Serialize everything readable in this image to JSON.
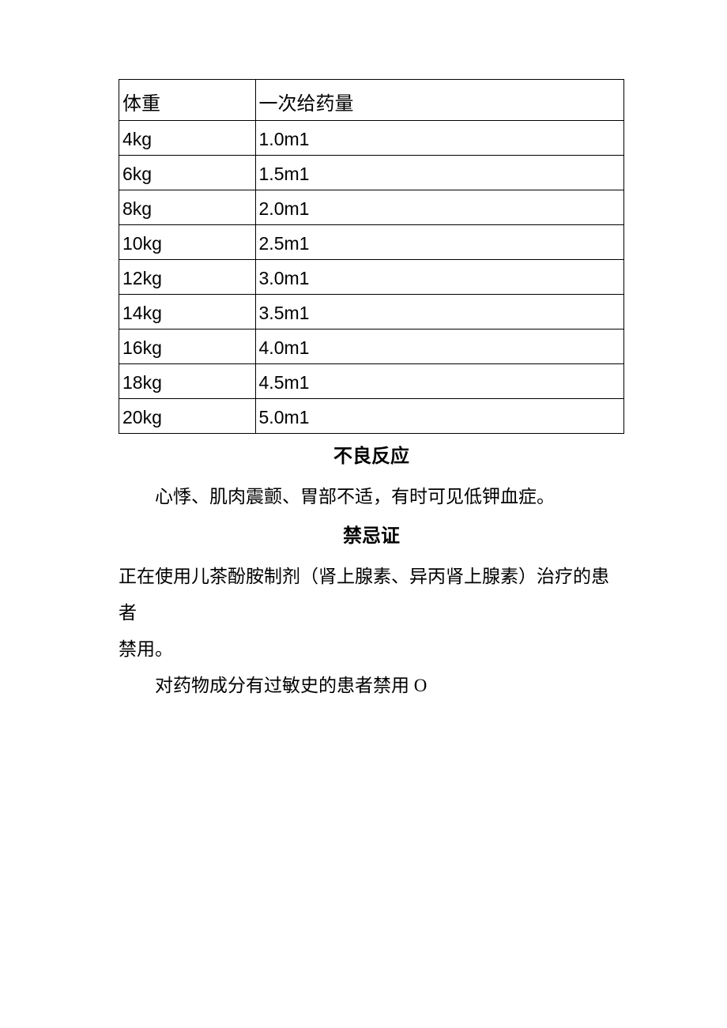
{
  "table": {
    "header": {
      "weight": "体重",
      "dose": "一次给药量"
    },
    "rows": [
      {
        "weight": "4kg",
        "dose": "1.0m1"
      },
      {
        "weight": "6kg",
        "dose": "1.5m1"
      },
      {
        "weight": "8kg",
        "dose": "2.0m1"
      },
      {
        "weight": "10kg",
        "dose": "2.5m1"
      },
      {
        "weight": "12kg",
        "dose": "3.0m1"
      },
      {
        "weight": "14kg",
        "dose": "3.5m1"
      },
      {
        "weight": "16kg",
        "dose": "4.0m1"
      },
      {
        "weight": "18kg",
        "dose": "4.5m1"
      },
      {
        "weight": "20kg",
        "dose": "5.0m1"
      }
    ],
    "col_widths": [
      "27%",
      "73%"
    ],
    "border_color": "#000000",
    "font_size": 23,
    "header_font_size": 24
  },
  "sections": {
    "adverse_reactions": {
      "heading": "不良反应",
      "body": "心悸、肌肉震颤、胃部不适，有时可见低钾血症。"
    },
    "contraindications": {
      "heading": "禁忌证",
      "line1": "正在使用儿茶酚胺制剂（肾上腺素、异丙肾上腺素）治疗的患者",
      "line2": "禁用。",
      "line3": "对药物成分有过敏史的患者禁用 O"
    }
  },
  "styles": {
    "background_color": "#ffffff",
    "text_color": "#000000",
    "heading_font": "SimHei",
    "body_font": "SimSun",
    "heading_fontsize": 24,
    "body_fontsize": 23,
    "line_height": 2.0
  }
}
